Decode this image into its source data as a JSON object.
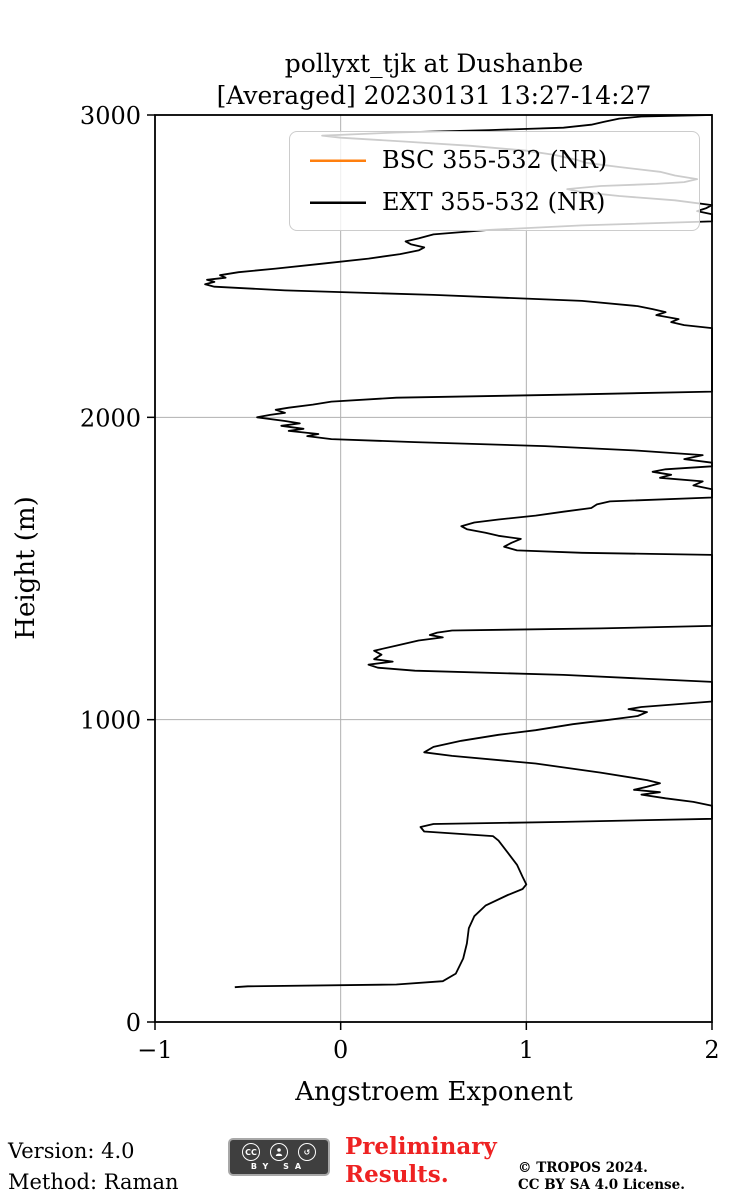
{
  "title": {
    "line1": "pollyxt_tjk at Dushanbe",
    "line2": "[Averaged] 20230131 13:27-14:27"
  },
  "axes": {
    "xlabel": "Angstroem Exponent",
    "ylabel": "Height (m)"
  },
  "legend": [
    {
      "label": "BSC 355-532 (NR)",
      "color": "#ff7f0e"
    },
    {
      "label": "EXT 355-532 (NR)",
      "color": "#000000"
    }
  ],
  "footer": {
    "version": "Version: 4.0",
    "method": "Method: Raman",
    "preliminary_line1": "Preliminary",
    "preliminary_line2": "Results.",
    "preliminary_color": "#ee2222",
    "copyright": "© TROPOS 2024.",
    "license": "CC BY SA 4.0 License.",
    "badge_cc": "CC",
    "badge_by_sa": "BY SA"
  },
  "chart_data": {
    "type": "line",
    "title": "pollyxt_tjk at Dushanbe [Averaged] 20230131 13:27-14:27",
    "xlabel": "Angstroem Exponent",
    "ylabel": "Height (m)",
    "xlim": [
      -1,
      2
    ],
    "ylim": [
      0,
      3000
    ],
    "x_ticks": [
      -1,
      0,
      1,
      2
    ],
    "x_tick_labels": [
      "−1",
      "0",
      "1",
      "2"
    ],
    "y_ticks": [
      0,
      1000,
      2000,
      3000
    ],
    "y_tick_labels": [
      "0",
      "1000",
      "2000",
      "3000"
    ],
    "grid": true,
    "grid_color": "#b0b0b0",
    "legend_position": "upper center",
    "series": [
      {
        "name": "BSC 355-532 (NR)",
        "color": "#ff7f0e",
        "points": []
      },
      {
        "name": "EXT 355-532 (NR)",
        "color": "#000000",
        "points": [
          [
            -0.57,
            115
          ],
          [
            -0.5,
            118
          ],
          [
            0.3,
            124
          ],
          [
            0.55,
            135
          ],
          [
            0.62,
            160
          ],
          [
            0.66,
            210
          ],
          [
            0.68,
            260
          ],
          [
            0.69,
            310
          ],
          [
            0.72,
            350
          ],
          [
            0.78,
            385
          ],
          [
            0.9,
            420
          ],
          [
            0.98,
            440
          ],
          [
            1.0,
            455
          ],
          [
            0.98,
            480
          ],
          [
            0.95,
            520
          ],
          [
            0.9,
            560
          ],
          [
            0.85,
            600
          ],
          [
            0.82,
            615
          ],
          [
            0.45,
            630
          ],
          [
            0.43,
            645
          ],
          [
            0.5,
            655
          ],
          [
            1.2,
            662
          ],
          [
            2.0,
            672
          ],
          [
            2.0,
            715
          ],
          [
            1.9,
            728
          ],
          [
            1.75,
            740
          ],
          [
            1.62,
            752
          ],
          [
            1.72,
            760
          ],
          [
            1.58,
            768
          ],
          [
            1.65,
            778
          ],
          [
            1.72,
            790
          ],
          [
            1.65,
            800
          ],
          [
            1.4,
            825
          ],
          [
            1.05,
            855
          ],
          [
            0.6,
            880
          ],
          [
            0.45,
            892
          ],
          [
            0.5,
            910
          ],
          [
            0.65,
            930
          ],
          [
            0.85,
            950
          ],
          [
            1.05,
            965
          ],
          [
            1.25,
            985
          ],
          [
            1.45,
            1000
          ],
          [
            1.6,
            1012
          ],
          [
            1.65,
            1025
          ],
          [
            1.55,
            1035
          ],
          [
            1.62,
            1042
          ],
          [
            2.0,
            1060
          ],
          [
            2.0,
            1125
          ],
          [
            1.2,
            1148
          ],
          [
            0.4,
            1162
          ],
          [
            0.2,
            1172
          ],
          [
            0.15,
            1182
          ],
          [
            0.28,
            1192
          ],
          [
            0.18,
            1200
          ],
          [
            0.22,
            1215
          ],
          [
            0.18,
            1228
          ],
          [
            0.3,
            1245
          ],
          [
            0.42,
            1262
          ],
          [
            0.55,
            1272
          ],
          [
            0.48,
            1280
          ],
          [
            0.52,
            1288
          ],
          [
            0.6,
            1295
          ],
          [
            1.4,
            1302
          ],
          [
            2.0,
            1310
          ],
          [
            2.0,
            1545
          ],
          [
            1.3,
            1552
          ],
          [
            0.95,
            1560
          ],
          [
            0.88,
            1572
          ],
          [
            0.92,
            1585
          ],
          [
            0.97,
            1598
          ],
          [
            0.85,
            1608
          ],
          [
            0.78,
            1618
          ],
          [
            0.68,
            1630
          ],
          [
            0.65,
            1640
          ],
          [
            0.72,
            1652
          ],
          [
            0.85,
            1662
          ],
          [
            1.05,
            1675
          ],
          [
            1.2,
            1688
          ],
          [
            1.35,
            1700
          ],
          [
            1.38,
            1712
          ],
          [
            1.45,
            1722
          ],
          [
            2.0,
            1735
          ],
          [
            2.0,
            1762
          ],
          [
            1.9,
            1775
          ],
          [
            1.95,
            1788
          ],
          [
            1.72,
            1800
          ],
          [
            1.78,
            1810
          ],
          [
            1.68,
            1820
          ],
          [
            1.75,
            1828
          ],
          [
            2.0,
            1838
          ],
          [
            2.0,
            1850
          ],
          [
            1.85,
            1862
          ],
          [
            1.95,
            1875
          ],
          [
            1.6,
            1890
          ],
          [
            1.1,
            1905
          ],
          [
            0.4,
            1918
          ],
          [
            -0.05,
            1928
          ],
          [
            -0.18,
            1938
          ],
          [
            -0.12,
            1945
          ],
          [
            -0.28,
            1955
          ],
          [
            -0.2,
            1962
          ],
          [
            -0.32,
            1972
          ],
          [
            -0.22,
            1980
          ],
          [
            -0.3,
            1988
          ],
          [
            -0.45,
            2000
          ],
          [
            -0.38,
            2008
          ],
          [
            -0.3,
            2015
          ],
          [
            -0.35,
            2025
          ],
          [
            -0.28,
            2032
          ],
          [
            -0.15,
            2042
          ],
          [
            -0.05,
            2052
          ],
          [
            0.3,
            2065
          ],
          [
            1.2,
            2075
          ],
          [
            2.0,
            2085
          ],
          [
            2.0,
            2295
          ],
          [
            1.85,
            2305
          ],
          [
            1.78,
            2315
          ],
          [
            1.82,
            2325
          ],
          [
            1.7,
            2338
          ],
          [
            1.75,
            2348
          ],
          [
            1.68,
            2358
          ],
          [
            1.6,
            2368
          ],
          [
            1.3,
            2385
          ],
          [
            0.5,
            2405
          ],
          [
            -0.3,
            2420
          ],
          [
            -0.68,
            2432
          ],
          [
            -0.73,
            2440
          ],
          [
            -0.68,
            2448
          ],
          [
            -0.72,
            2455
          ],
          [
            -0.62,
            2462
          ],
          [
            -0.65,
            2470
          ],
          [
            -0.55,
            2480
          ],
          [
            -0.35,
            2492
          ],
          [
            -0.1,
            2508
          ],
          [
            0.15,
            2525
          ],
          [
            0.32,
            2540
          ],
          [
            0.42,
            2552
          ],
          [
            0.45,
            2562
          ],
          [
            0.38,
            2572
          ],
          [
            0.35,
            2582
          ],
          [
            0.42,
            2592
          ],
          [
            0.5,
            2605
          ],
          [
            0.8,
            2620
          ],
          [
            1.3,
            2635
          ],
          [
            2.0,
            2648
          ],
          [
            2.0,
            2672
          ],
          [
            1.92,
            2682
          ],
          [
            1.97,
            2692
          ],
          [
            2.0,
            2702
          ],
          [
            1.8,
            2718
          ],
          [
            1.5,
            2732
          ],
          [
            1.3,
            2745
          ],
          [
            1.22,
            2755
          ],
          [
            1.4,
            2765
          ],
          [
            1.7,
            2772
          ],
          [
            1.85,
            2778
          ],
          [
            1.92,
            2788
          ],
          [
            1.8,
            2800
          ],
          [
            1.72,
            2812
          ],
          [
            1.5,
            2828
          ],
          [
            1.32,
            2842
          ],
          [
            1.27,
            2852
          ],
          [
            1.15,
            2868
          ],
          [
            1.0,
            2882
          ],
          [
            0.7,
            2898
          ],
          [
            0.35,
            2912
          ],
          [
            0.0,
            2925
          ],
          [
            -0.1,
            2932
          ],
          [
            0.3,
            2942
          ],
          [
            0.8,
            2950
          ],
          [
            1.2,
            2958
          ],
          [
            1.35,
            2968
          ],
          [
            1.42,
            2978
          ],
          [
            1.5,
            2988
          ],
          [
            1.62,
            2995
          ],
          [
            2.0,
            3000
          ]
        ]
      }
    ]
  }
}
